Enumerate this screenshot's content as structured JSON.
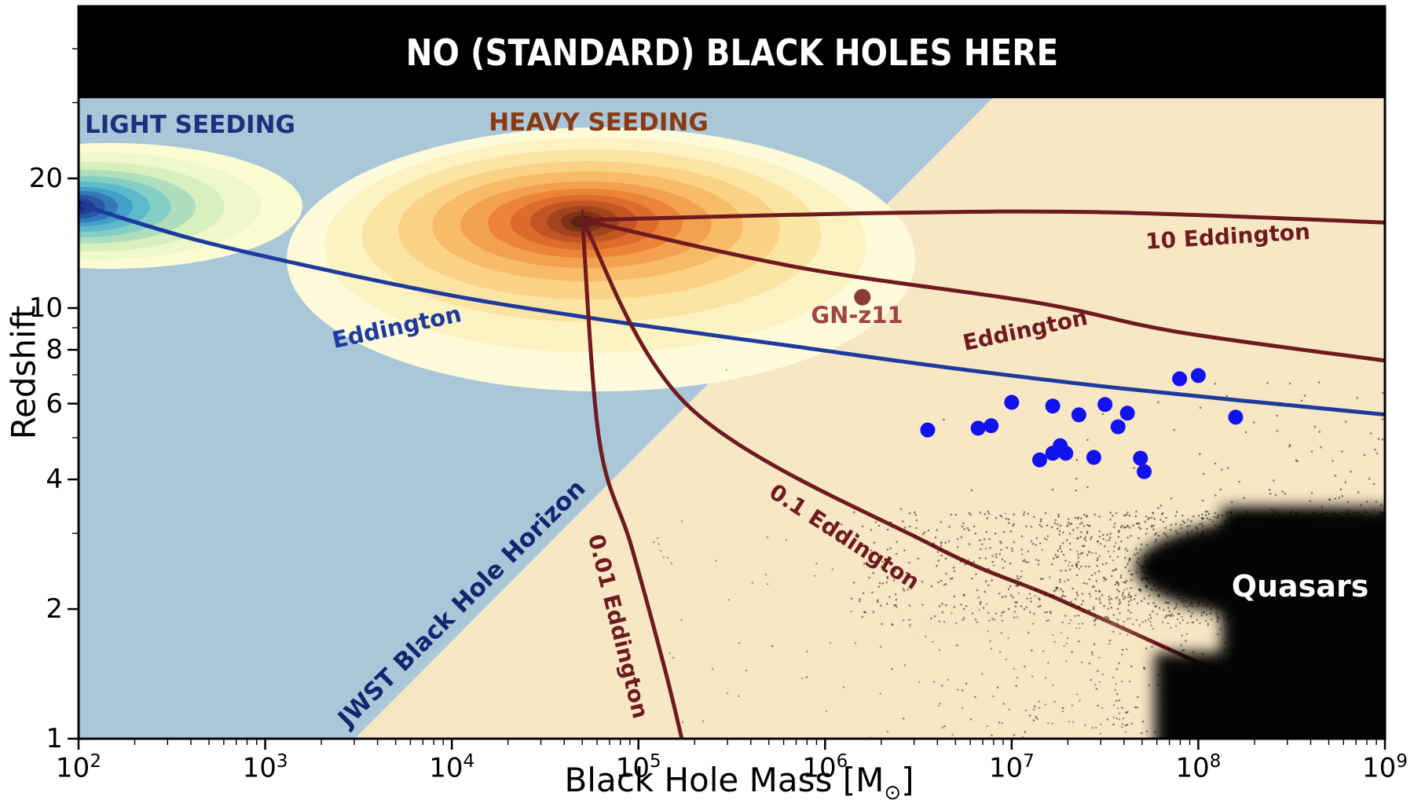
{
  "chart_data": {
    "type": "scatter",
    "banner": "NO (STANDARD) BLACK HOLES HERE",
    "xlabel_pre": "Black Hole Mass [M",
    "xlabel_sub": "⊙",
    "xlabel_post": "]",
    "ylabel": "Redshift",
    "x_axis": {
      "scale": "log",
      "min": 100,
      "max": 1000000000,
      "tick_exponents": [
        "2",
        "3",
        "4",
        "5",
        "6",
        "7",
        "8",
        "9"
      ]
    },
    "y_axis": {
      "scale": "log",
      "min": 1,
      "max": 50,
      "ticks": [
        1,
        2,
        4,
        6,
        8,
        10,
        20
      ],
      "minor_ticks": [
        3,
        5,
        7,
        9,
        30,
        40
      ]
    },
    "regions": {
      "no_black_holes": {
        "label_is_banner": true,
        "color": "#000000",
        "z_range": [
          31,
          50
        ]
      },
      "light_seeding": {
        "label": "LIGHT SEEDING",
        "color": "#a9c7d8",
        "text_color": "#1d2f7e"
      },
      "heavy_seeding": {
        "label": "HEAVY SEEDING",
        "text_color": "#8a3a12"
      },
      "observable": {
        "color": "#f8e7c5"
      },
      "jwst_horizon": {
        "label": "JWST Black Hole Horizon",
        "text_color": "#15246e",
        "line_logM_z": [
          [
            3.48,
            1.0
          ],
          [
            6.9,
            30.8
          ]
        ]
      }
    },
    "seed_origin": {
      "logM": 4.7,
      "z": 16.0
    },
    "tracks": [
      {
        "id": "tblue",
        "name": "Eddington",
        "seed": "light",
        "color": "#1e3a9c",
        "width": 5,
        "points": [
          [
            2.02,
            17.3
          ],
          [
            2.63,
            14.4
          ],
          [
            3.35,
            12.2
          ],
          [
            4.1,
            10.5
          ],
          [
            4.95,
            9.2
          ],
          [
            5.79,
            8.2
          ],
          [
            6.63,
            7.3
          ],
          [
            7.6,
            6.5
          ],
          [
            9.0,
            5.66
          ]
        ]
      },
      {
        "id": "t10",
        "name": "10 Eddington",
        "seed": "heavy",
        "color": "#6e1a20",
        "width": 5,
        "points": [
          [
            4.7,
            16.0
          ],
          [
            6.21,
            16.6
          ],
          [
            7.47,
            16.7
          ],
          [
            9.0,
            15.8
          ]
        ]
      },
      {
        "id": "t1",
        "name": "Eddington",
        "seed": "heavy",
        "color": "#6e1a20",
        "width": 5,
        "points": [
          [
            4.7,
            16.0
          ],
          [
            5.87,
            12.4
          ],
          [
            7.13,
            10.3
          ],
          [
            7.89,
            8.8
          ],
          [
            9.0,
            7.55
          ]
        ]
      },
      {
        "id": "t01",
        "name": "0.1 Eddington",
        "seed": "heavy",
        "color": "#6e1a20",
        "width": 5,
        "points": [
          [
            4.7,
            16.0
          ],
          [
            5.28,
            5.85
          ],
          [
            6.57,
            2.82
          ],
          [
            7.26,
            2.1
          ],
          [
            8.14,
            1.41
          ]
        ]
      },
      {
        "id": "t001",
        "name": "0.01 Eddington",
        "seed": "heavy",
        "color": "#6e1a20",
        "width": 5,
        "points": [
          [
            4.7,
            16.0
          ],
          [
            4.79,
            4.94
          ],
          [
            4.96,
            2.82
          ],
          [
            5.14,
            1.46
          ],
          [
            5.23,
            1.01
          ]
        ]
      }
    ],
    "track_labels": {
      "tblue": "Eddington",
      "t10": "10 Eddington",
      "t1": "Eddington",
      "t01": "0.1 Eddington",
      "t001": "0.01 Eddington"
    },
    "gn_z11": {
      "label": "GN-z11",
      "logM": 6.2,
      "z": 10.6,
      "dot_color": "#8d3a35",
      "text_color": "#a04545"
    },
    "jwst_agn": {
      "color": "#1212ef",
      "radius": 9.5,
      "points_logM_z": [
        [
          6.55,
          5.21
        ],
        [
          6.82,
          5.26
        ],
        [
          6.89,
          5.33
        ],
        [
          7.0,
          6.04
        ],
        [
          7.22,
          5.92
        ],
        [
          7.36,
          5.65
        ],
        [
          7.5,
          5.97
        ],
        [
          7.62,
          5.7
        ],
        [
          7.57,
          5.3
        ],
        [
          7.9,
          6.85
        ],
        [
          8.0,
          6.97
        ],
        [
          8.2,
          5.58
        ],
        [
          7.15,
          4.44
        ],
        [
          7.22,
          4.6
        ],
        [
          7.26,
          4.79
        ],
        [
          7.29,
          4.6
        ],
        [
          7.44,
          4.5
        ],
        [
          7.69,
          4.48
        ],
        [
          7.71,
          4.17
        ]
      ]
    },
    "quasars": {
      "label": "Quasars",
      "text_color": "#ffffff",
      "cloud_logM_range": [
        6.5,
        9.0
      ],
      "cloud_z_range": [
        1.0,
        4.5
      ]
    },
    "contours": {
      "light_colors": [
        "#fcfcd4",
        "#eff8c8",
        "#d8efbe",
        "#aedebc",
        "#84cfc4",
        "#5dbaca",
        "#429fc9",
        "#3379b6",
        "#2a57a5",
        "#203e92",
        "#192b7e"
      ],
      "heavy_colors": [
        "#fefbda",
        "#fdf3c2",
        "#fce4a4",
        "#fbd286",
        "#f8bb68",
        "#f3a150",
        "#ec8438",
        "#dd6b2b",
        "#c25523",
        "#a1431c",
        "#7c3316",
        "#522510"
      ]
    }
  }
}
